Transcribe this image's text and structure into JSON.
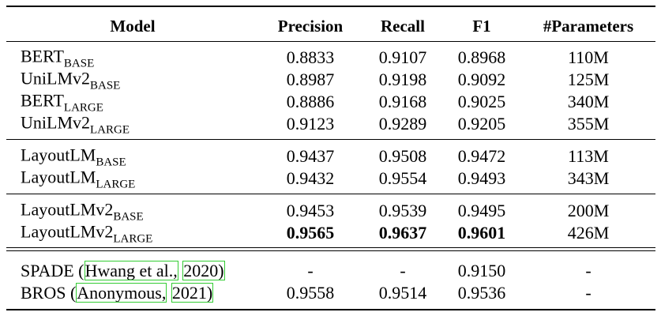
{
  "table": {
    "header": [
      "Model",
      "Precision",
      "Recall",
      "F1",
      "#Parameters"
    ],
    "groups": [
      [
        {
          "model": [
            {
              "text": "BERT"
            },
            {
              "text": "BASE",
              "sub": true
            }
          ],
          "cells": [
            "0.8833",
            "0.9107",
            "0.8968",
            "110M"
          ]
        },
        {
          "model": [
            {
              "text": "UniLMv2"
            },
            {
              "text": "BASE",
              "sub": true
            }
          ],
          "cells": [
            "0.8987",
            "0.9198",
            "0.9092",
            "125M"
          ]
        },
        {
          "model": [
            {
              "text": "BERT"
            },
            {
              "text": "LARGE",
              "sub": true
            }
          ],
          "cells": [
            "0.8886",
            "0.9168",
            "0.9025",
            "340M"
          ]
        },
        {
          "model": [
            {
              "text": "UniLMv2"
            },
            {
              "text": "LARGE",
              "sub": true
            }
          ],
          "cells": [
            "0.9123",
            "0.9289",
            "0.9205",
            "355M"
          ]
        }
      ],
      [
        {
          "model": [
            {
              "text": "LayoutLM"
            },
            {
              "text": "BASE",
              "sub": true
            }
          ],
          "cells": [
            "0.9437",
            "0.9508",
            "0.9472",
            "113M"
          ]
        },
        {
          "model": [
            {
              "text": "LayoutLM"
            },
            {
              "text": "LARGE",
              "sub": true
            }
          ],
          "cells": [
            "0.9432",
            "0.9554",
            "0.9493",
            "343M"
          ]
        }
      ],
      [
        {
          "model": [
            {
              "text": "LayoutLMv2"
            },
            {
              "text": "BASE",
              "sub": true
            }
          ],
          "cells": [
            "0.9453",
            "0.9539",
            "0.9495",
            "200M"
          ]
        },
        {
          "model": [
            {
              "text": "LayoutLMv2"
            },
            {
              "text": "LARGE",
              "sub": true
            }
          ],
          "cells": [
            "0.9565",
            "0.9637",
            "0.9601",
            "426M"
          ],
          "strong": [
            true,
            true,
            true,
            false
          ]
        }
      ],
      [
        {
          "model": [
            {
              "text": "SPADE ("
            },
            {
              "text": "Hwang et al.,",
              "boxed": true
            },
            {
              "text": " "
            },
            {
              "text": "2020)",
              "boxed": true
            }
          ],
          "cells": [
            "-",
            "-",
            "0.9150",
            "-"
          ]
        },
        {
          "model": [
            {
              "text": "BROS ("
            },
            {
              "text": "Anonymous,",
              "boxed": true
            },
            {
              "text": " "
            },
            {
              "text": "2021)",
              "boxed": true
            }
          ],
          "cells": [
            "0.9558",
            "0.9514",
            "0.9536",
            "-"
          ]
        }
      ]
    ]
  }
}
